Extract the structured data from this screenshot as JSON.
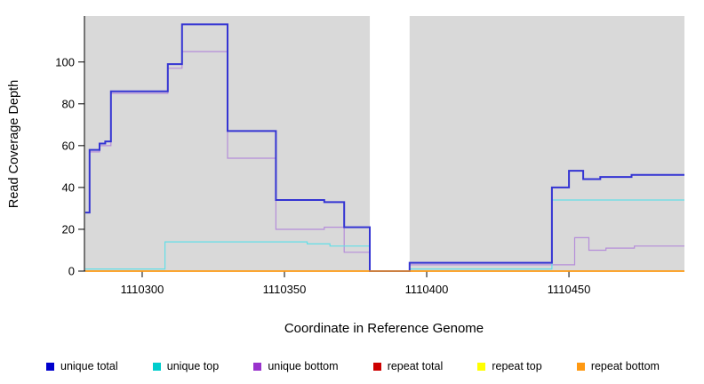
{
  "figure": {
    "background": "#ffffff",
    "plot_background": "#d9d9d9",
    "gap_background": "#ffffff",
    "axis_color": "#000000"
  },
  "chart_data": {
    "type": "line",
    "step": true,
    "title": "",
    "xlabel": "Coordinate in Reference Genome",
    "ylabel": "Read Coverage Depth",
    "xlim": [
      1110279.7,
      1110490.6
    ],
    "ylim": [
      0,
      122
    ],
    "xticks": [
      1110300,
      1110350,
      1110400,
      1110450
    ],
    "yticks": [
      0,
      20,
      40,
      60,
      80,
      100
    ],
    "grid": false,
    "legend_position": "bottom",
    "gap_region": {
      "x0": 1110380,
      "x1": 1110394
    },
    "draw_order": [
      3,
      4,
      2,
      1,
      0,
      5
    ],
    "series": [
      {
        "name": "unique total",
        "color": "#0000cd",
        "line_color": "#3434d3",
        "line_width": 2,
        "points": [
          [
            1110280,
            28
          ],
          [
            1110281.5,
            58
          ],
          [
            1110285,
            61
          ],
          [
            1110287,
            62
          ],
          [
            1110289,
            86
          ],
          [
            1110309,
            99
          ],
          [
            1110314,
            118
          ],
          [
            1110330,
            67
          ],
          [
            1110347,
            34
          ],
          [
            1110364,
            33
          ],
          [
            1110371,
            21
          ],
          [
            1110380,
            0
          ],
          [
            1110394,
            4
          ],
          [
            1110444,
            40
          ],
          [
            1110450,
            48
          ],
          [
            1110455,
            44
          ],
          [
            1110461,
            45
          ],
          [
            1110472,
            46
          ],
          [
            1110490.6,
            46
          ]
        ]
      },
      {
        "name": "unique top",
        "color": "#00cdcd",
        "line_color": "#63dfe7",
        "line_width": 1.2,
        "points": [
          [
            1110280,
            1
          ],
          [
            1110308,
            14
          ],
          [
            1110358,
            13
          ],
          [
            1110366,
            12
          ],
          [
            1110380,
            0
          ],
          [
            1110394,
            1
          ],
          [
            1110444,
            34
          ],
          [
            1110490.6,
            34
          ]
        ]
      },
      {
        "name": "unique bottom",
        "color": "#9932cc",
        "line_color": "#b58dd9",
        "line_width": 1.2,
        "points": [
          [
            1110280,
            28
          ],
          [
            1110281.5,
            57
          ],
          [
            1110285,
            60
          ],
          [
            1110289,
            85
          ],
          [
            1110309,
            97
          ],
          [
            1110314,
            105
          ],
          [
            1110330,
            54
          ],
          [
            1110347,
            20
          ],
          [
            1110364,
            21
          ],
          [
            1110371,
            9
          ],
          [
            1110380,
            0
          ],
          [
            1110394,
            3
          ],
          [
            1110452,
            16
          ],
          [
            1110457,
            10
          ],
          [
            1110463,
            11
          ],
          [
            1110473,
            12
          ],
          [
            1110490.6,
            12
          ]
        ]
      },
      {
        "name": "repeat total",
        "color": "#cd0000",
        "line_color": "#cd0000",
        "line_width": 1.2,
        "points": [
          [
            1110280,
            0
          ],
          [
            1110490.6,
            0
          ]
        ]
      },
      {
        "name": "repeat top",
        "color": "#ffff00",
        "line_color": "#ffff00",
        "line_width": 1.2,
        "points": [
          [
            1110280,
            0
          ],
          [
            1110490.6,
            0
          ]
        ]
      },
      {
        "name": "repeat bottom",
        "color": "#ff9912",
        "line_color": "#ff9912",
        "line_width": 1.6,
        "points": [
          [
            1110280,
            0
          ],
          [
            1110490.6,
            0
          ]
        ]
      }
    ]
  },
  "legend": {
    "items": [
      {
        "label": "unique total",
        "color": "#0000cd"
      },
      {
        "label": "unique top",
        "color": "#00cdcd"
      },
      {
        "label": "unique bottom",
        "color": "#9932cc"
      },
      {
        "label": "repeat total",
        "color": "#cd0000"
      },
      {
        "label": "repeat top",
        "color": "#ffff00"
      },
      {
        "label": "repeat bottom",
        "color": "#ff9912"
      }
    ]
  }
}
